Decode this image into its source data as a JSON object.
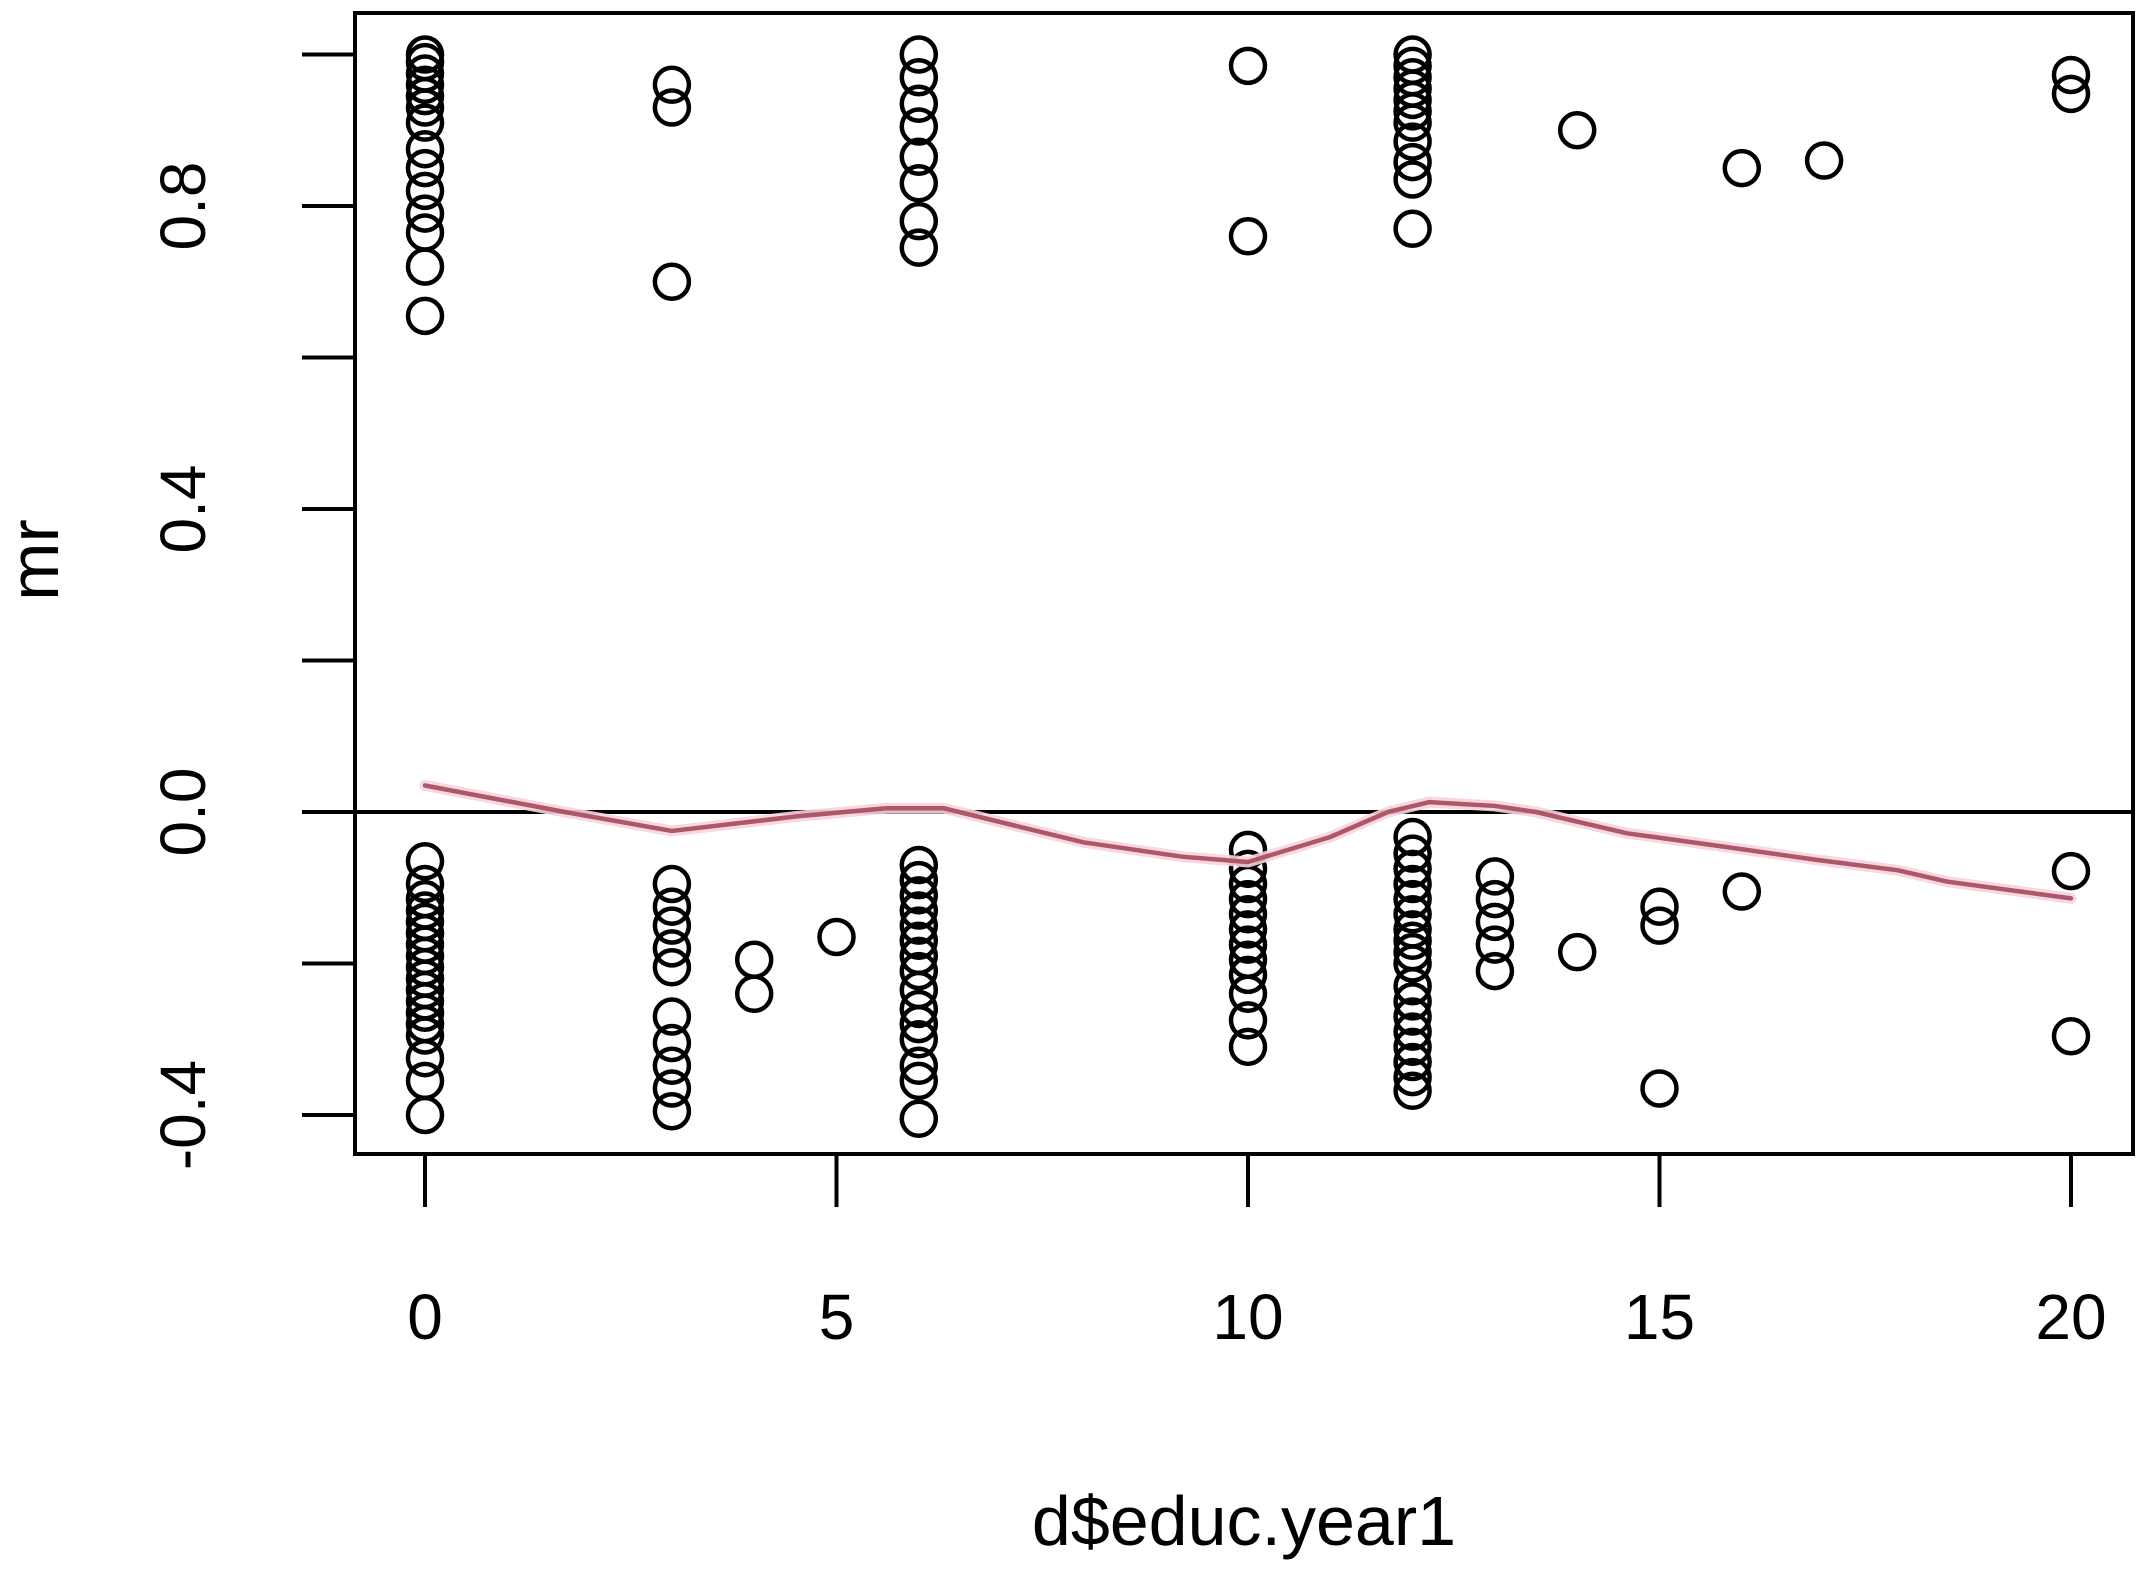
{
  "figure": {
    "kind": "R-scatterplot-screenshot",
    "background": "#ffffff",
    "frame_color": "#000000"
  },
  "chart_data": {
    "type": "scatter",
    "title": "",
    "xlabel": "d$educ.year1",
    "ylabel": "mr",
    "marker": "open-circle",
    "point_color": "#000000",
    "grid": false,
    "legend": "none",
    "xlim": [
      -0.85,
      20.78
    ],
    "ylim": [
      -0.453,
      1.054
    ],
    "x_ticks": [
      0,
      5,
      10,
      15,
      20
    ],
    "x_tick_labels": [
      "0",
      "5",
      "10",
      "15",
      "20"
    ],
    "y_ticks": [
      1.0,
      0.8,
      0.6,
      0.4,
      0.2,
      0.0,
      -0.2,
      -0.4
    ],
    "y_labeled_ticks": [
      {
        "value": 0.8,
        "label": "0.8"
      },
      {
        "value": 0.4,
        "label": "0.4"
      },
      {
        "value": 0.0,
        "label": "0.0"
      },
      {
        "value": -0.4,
        "label": "-0.4"
      }
    ],
    "zero_line": {
      "y": 0.0,
      "color": "#000000"
    },
    "points": [
      {
        "x": 0,
        "ys": [
          1.0,
          0.99,
          0.975,
          0.96,
          0.945,
          0.93,
          0.91,
          0.875,
          0.85,
          0.82,
          0.79,
          0.765,
          0.72,
          0.655,
          -0.065,
          -0.095,
          -0.115,
          -0.13,
          -0.145,
          -0.16,
          -0.175,
          -0.19,
          -0.205,
          -0.22,
          -0.235,
          -0.25,
          -0.265,
          -0.28,
          -0.295,
          -0.325,
          -0.355,
          -0.4
        ]
      },
      {
        "x": 3,
        "ys": [
          0.96,
          0.93,
          0.7,
          -0.095,
          -0.125,
          -0.15,
          -0.18,
          -0.205,
          -0.27,
          -0.305,
          -0.335,
          -0.365,
          -0.395
        ]
      },
      {
        "x": 4,
        "ys": [
          -0.195,
          -0.24
        ]
      },
      {
        "x": 5,
        "ys": [
          -0.165
        ]
      },
      {
        "x": 6,
        "ys": [
          1.0,
          0.97,
          0.935,
          0.905,
          0.865,
          0.83,
          0.78,
          0.745,
          -0.07,
          -0.09,
          -0.11,
          -0.13,
          -0.15,
          -0.17,
          -0.19,
          -0.21,
          -0.235,
          -0.26,
          -0.28,
          -0.3,
          -0.335,
          -0.355,
          -0.405
        ]
      },
      {
        "x": 10,
        "ys": [
          0.985,
          0.76,
          -0.05,
          -0.075,
          -0.095,
          -0.115,
          -0.135,
          -0.155,
          -0.175,
          -0.195,
          -0.215,
          -0.24,
          -0.275,
          -0.31
        ]
      },
      {
        "x": 12,
        "ys": [
          1.0,
          0.985,
          0.97,
          0.955,
          0.94,
          0.925,
          0.91,
          0.885,
          0.858,
          0.835,
          0.77,
          -0.033,
          -0.055,
          -0.075,
          -0.095,
          -0.115,
          -0.135,
          -0.155,
          -0.17,
          -0.185,
          -0.2,
          -0.23,
          -0.25,
          -0.27,
          -0.29,
          -0.31,
          -0.33,
          -0.35,
          -0.368
        ]
      },
      {
        "x": 13,
        "ys": [
          -0.085,
          -0.115,
          -0.145,
          -0.175,
          -0.21
        ]
      },
      {
        "x": 14,
        "ys": [
          0.9,
          -0.185
        ]
      },
      {
        "x": 15,
        "ys": [
          -0.125,
          -0.15,
          -0.365
        ]
      },
      {
        "x": 16,
        "ys": [
          0.85,
          -0.105
        ]
      },
      {
        "x": 17,
        "ys": [
          0.86
        ]
      },
      {
        "x": 20,
        "ys": [
          0.973,
          0.948,
          -0.078,
          -0.296
        ]
      }
    ],
    "lowess": {
      "color": "#ad5768",
      "halo_color": "#f5d3e0",
      "points": [
        [
          0,
          0.035
        ],
        [
          1.7,
          0.0
        ],
        [
          3,
          -0.025
        ],
        [
          4.5,
          -0.006
        ],
        [
          5.6,
          0.005
        ],
        [
          6.3,
          0.005
        ],
        [
          8,
          -0.04
        ],
        [
          9.2,
          -0.059
        ],
        [
          10,
          -0.066
        ],
        [
          11,
          -0.033
        ],
        [
          11.7,
          0.0
        ],
        [
          12.2,
          0.013
        ],
        [
          13,
          0.008
        ],
        [
          13.5,
          0.0
        ],
        [
          14.6,
          -0.028
        ],
        [
          15.8,
          -0.046
        ],
        [
          16.9,
          -0.063
        ],
        [
          17.9,
          -0.077
        ],
        [
          18.5,
          -0.092
        ],
        [
          20,
          -0.114
        ]
      ]
    }
  }
}
